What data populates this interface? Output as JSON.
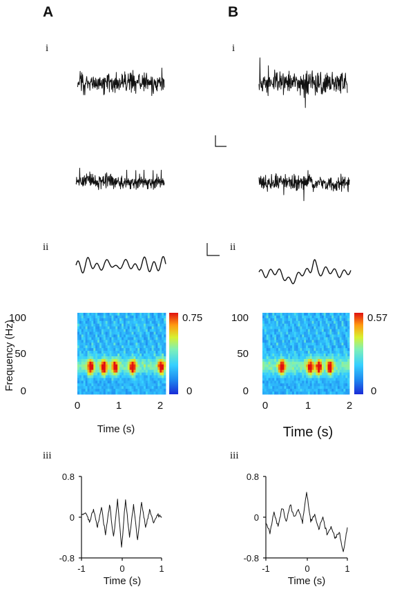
{
  "panels": [
    {
      "letter": "A",
      "sub_i": "i",
      "sub_ii": "ii",
      "sub_iii": "iii",
      "spectrogram": {
        "ylabel": "Frequency (Hz)",
        "yticks": [
          "0",
          "50",
          "100"
        ],
        "xticks": [
          "0",
          "1",
          "2"
        ],
        "xlabel": "Time (s)",
        "colorbar_max": "0.75",
        "colorbar_min": "0"
      },
      "crosscorr": {
        "yticks": [
          "-0.8",
          "0",
          "0.8"
        ],
        "xticks": [
          "-1",
          "0",
          "1"
        ],
        "xlabel": "Time (s)"
      }
    },
    {
      "letter": "B",
      "sub_i": "i",
      "sub_ii": "ii",
      "sub_iii": "iii",
      "spectrogram": {
        "ylabel": "",
        "yticks": [
          "0",
          "50",
          "100"
        ],
        "xticks": [
          "0",
          "1",
          "2"
        ],
        "xlabel": "Time (s)",
        "colorbar_max": "0.57",
        "colorbar_min": "0"
      },
      "crosscorr": {
        "yticks": [
          "-0.8",
          "0",
          "0.8"
        ],
        "xticks": [
          "-1",
          "0",
          "1"
        ],
        "xlabel": "Time (s)"
      }
    }
  ],
  "colors": {
    "trace": "#111111",
    "colormap": [
      "#1a2bd6",
      "#1f8af0",
      "#36d0ff",
      "#7ef0b8",
      "#d8f030",
      "#ff9a10",
      "#e01010"
    ]
  },
  "chart_data": [
    {
      "type": "heatmap",
      "panel": "A",
      "xlabel": "Time (s)",
      "ylabel": "Frequency (Hz)",
      "xlim": [
        0,
        2
      ],
      "ylim": [
        0,
        100
      ],
      "colorbar_range": [
        0,
        0.75
      ],
      "peak_band_hz": [
        25,
        45
      ],
      "peak_times_s": [
        0.3,
        0.6,
        0.85,
        1.25,
        1.9
      ]
    },
    {
      "type": "heatmap",
      "panel": "B",
      "xlabel": "Time (s)",
      "ylabel": "Frequency (Hz)",
      "xlim": [
        0,
        2
      ],
      "ylim": [
        0,
        100
      ],
      "colorbar_range": [
        0,
        0.57
      ],
      "peak_band_hz": [
        25,
        45
      ],
      "peak_times_s": [
        0.45,
        1.1,
        1.3,
        1.55
      ]
    },
    {
      "type": "line",
      "panel": "A",
      "xlabel": "Time (s)",
      "xlim": [
        -1,
        1
      ],
      "ylim": [
        -0.8,
        0.8
      ],
      "x": [
        -1,
        -0.9,
        -0.8,
        -0.7,
        -0.6,
        -0.5,
        -0.4,
        -0.3,
        -0.2,
        -0.1,
        0,
        0.1,
        0.2,
        0.3,
        0.4,
        0.5,
        0.6,
        0.7,
        0.8,
        0.9,
        1
      ],
      "y": [
        0.05,
        0.1,
        -0.1,
        0.15,
        -0.2,
        0.2,
        -0.35,
        0.25,
        -0.4,
        0.35,
        -0.6,
        0.35,
        -0.4,
        0.25,
        -0.45,
        0.3,
        -0.2,
        0.15,
        -0.1,
        0.05,
        0
      ]
    },
    {
      "type": "line",
      "panel": "B",
      "xlabel": "Time (s)",
      "xlim": [
        -1,
        1
      ],
      "ylim": [
        -0.8,
        0.8
      ],
      "x": [
        -1,
        -0.9,
        -0.8,
        -0.7,
        -0.6,
        -0.5,
        -0.4,
        -0.3,
        -0.2,
        -0.1,
        0,
        0.1,
        0.2,
        0.3,
        0.4,
        0.5,
        0.6,
        0.7,
        0.8,
        0.9,
        1
      ],
      "y": [
        -0.1,
        -0.3,
        0.1,
        -0.2,
        0.2,
        -0.1,
        0.25,
        0,
        0.15,
        -0.1,
        0.5,
        -0.1,
        0.05,
        -0.25,
        0,
        -0.35,
        -0.2,
        -0.4,
        -0.3,
        -0.7,
        -0.2
      ]
    }
  ]
}
